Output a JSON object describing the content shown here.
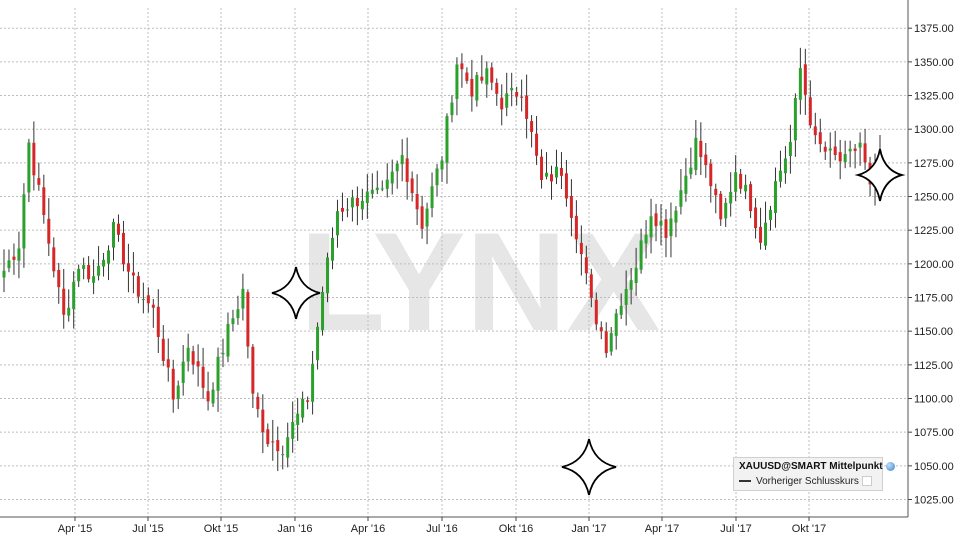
{
  "watermark": "LYNX",
  "legend": {
    "title": "XAUUSD@SMART Mittelpunkt",
    "item": "Vorheriger Schlusskurs"
  },
  "colors": {
    "up": "#2ca02c",
    "down": "#d62728",
    "grid": "#bdbdbd",
    "watermark": "#e6e6e6"
  },
  "chart_data": {
    "type": "candlestick",
    "title": "",
    "ylabel": "",
    "xlabel": "",
    "ylim": [
      1012,
      1390
    ],
    "grid": true,
    "y_ticks": [
      "1025.00",
      "1050.00",
      "1075.00",
      "1100.00",
      "1125.00",
      "1150.00",
      "1175.00",
      "1200.00",
      "1225.00",
      "1250.00",
      "1275.00",
      "1300.00",
      "1325.00",
      "1350.00",
      "1375.00"
    ],
    "x_ticks": [
      "Apr '15",
      "Jul '15",
      "Okt '15",
      "Jan '16",
      "Apr '16",
      "Jul '16",
      "Okt '16",
      "Jan '17",
      "Apr '17",
      "Jul '17",
      "Okt '17"
    ],
    "anchors": [
      {
        "i": 0,
        "v": 1195
      },
      {
        "i": 3,
        "v": 1215
      },
      {
        "i": 5,
        "v": 1290
      },
      {
        "i": 8,
        "v": 1235
      },
      {
        "i": 12,
        "v": 1160
      },
      {
        "i": 15,
        "v": 1200
      },
      {
        "i": 18,
        "v": 1190
      },
      {
        "i": 22,
        "v": 1225
      },
      {
        "i": 26,
        "v": 1185
      },
      {
        "i": 30,
        "v": 1165
      },
      {
        "i": 34,
        "v": 1100
      },
      {
        "i": 37,
        "v": 1140
      },
      {
        "i": 41,
        "v": 1100
      },
      {
        "i": 45,
        "v": 1150
      },
      {
        "i": 48,
        "v": 1180
      },
      {
        "i": 50,
        "v": 1100
      },
      {
        "i": 53,
        "v": 1070
      },
      {
        "i": 56,
        "v": 1065
      },
      {
        "i": 58,
        "v": 1080
      },
      {
        "i": 61,
        "v": 1100
      },
      {
        "i": 64,
        "v": 1180
      },
      {
        "i": 67,
        "v": 1240
      },
      {
        "i": 72,
        "v": 1250
      },
      {
        "i": 76,
        "v": 1250
      },
      {
        "i": 80,
        "v": 1280
      },
      {
        "i": 84,
        "v": 1230
      },
      {
        "i": 88,
        "v": 1280
      },
      {
        "i": 91,
        "v": 1350
      },
      {
        "i": 94,
        "v": 1330
      },
      {
        "i": 97,
        "v": 1340
      },
      {
        "i": 100,
        "v": 1320
      },
      {
        "i": 104,
        "v": 1330
      },
      {
        "i": 108,
        "v": 1260
      },
      {
        "i": 112,
        "v": 1270
      },
      {
        "i": 115,
        "v": 1225
      },
      {
        "i": 118,
        "v": 1170
      },
      {
        "i": 121,
        "v": 1140
      },
      {
        "i": 124,
        "v": 1175
      },
      {
        "i": 127,
        "v": 1200
      },
      {
        "i": 130,
        "v": 1240
      },
      {
        "i": 133,
        "v": 1225
      },
      {
        "i": 136,
        "v": 1255
      },
      {
        "i": 139,
        "v": 1290
      },
      {
        "i": 142,
        "v": 1260
      },
      {
        "i": 144,
        "v": 1230
      },
      {
        "i": 147,
        "v": 1270
      },
      {
        "i": 150,
        "v": 1245
      },
      {
        "i": 152,
        "v": 1220
      },
      {
        "i": 155,
        "v": 1260
      },
      {
        "i": 158,
        "v": 1290
      },
      {
        "i": 160,
        "v": 1345
      },
      {
        "i": 163,
        "v": 1290
      },
      {
        "i": 166,
        "v": 1280
      },
      {
        "i": 169,
        "v": 1275
      },
      {
        "i": 172,
        "v": 1290
      },
      {
        "i": 174,
        "v": 1255
      },
      {
        "i": 176,
        "v": 1280
      }
    ]
  }
}
